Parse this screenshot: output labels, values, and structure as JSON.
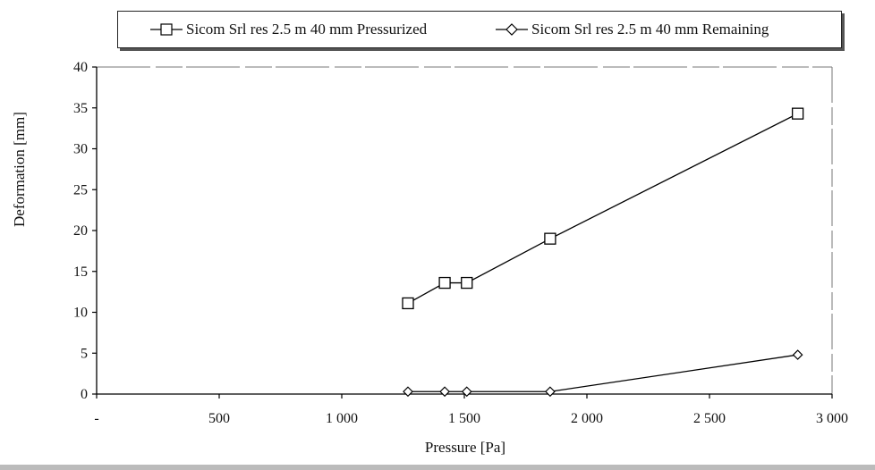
{
  "chart_data": {
    "type": "line",
    "xlabel": "Pressure [Pa]",
    "ylabel": "Deformation [mm]",
    "xlim": [
      0,
      3000
    ],
    "ylim": [
      0,
      40
    ],
    "x_ticks": [
      0,
      500,
      1000,
      1500,
      2000,
      2500,
      3000
    ],
    "x_tick_labels": [
      "-",
      "500",
      "1 000",
      "1 500",
      "2 000",
      "2 500",
      "3 000"
    ],
    "y_ticks": [
      0,
      5,
      10,
      15,
      20,
      25,
      30,
      35,
      40
    ],
    "y_tick_labels": [
      "0",
      "5",
      "10",
      "15",
      "20",
      "25",
      "30",
      "35",
      "40"
    ],
    "grid": false,
    "legend_position": "top",
    "series": [
      {
        "name": "Sicom Srl res 2.5 m 40 mm Pressurized",
        "marker": "square",
        "x": [
          1270,
          1420,
          1510,
          1850,
          2860
        ],
        "y": [
          11.1,
          13.6,
          13.6,
          19.0,
          34.3
        ]
      },
      {
        "name": "Sicom Srl res 2.5 m 40 mm Remaining",
        "marker": "diamond",
        "x": [
          1270,
          1420,
          1510,
          1850,
          2860
        ],
        "y": [
          0.3,
          0.3,
          0.3,
          0.3,
          4.8
        ]
      }
    ]
  }
}
